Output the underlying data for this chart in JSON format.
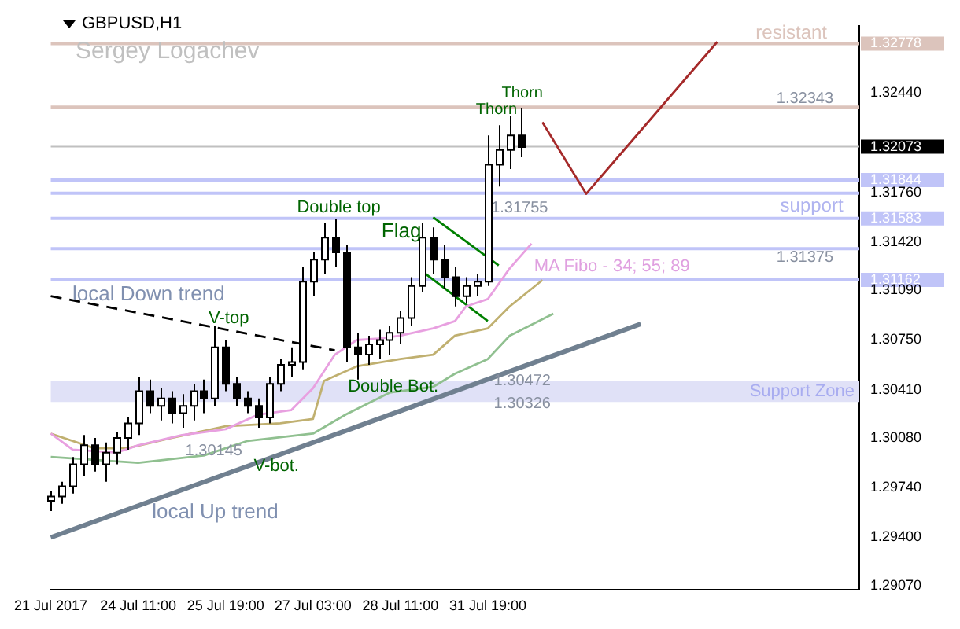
{
  "chart_data": {
    "type": "candlestick",
    "title": "GBPUSD,H1",
    "subtitle": "Sergey Logachev",
    "categories": [
      "21 Jul 2017",
      null,
      null,
      null,
      null,
      null,
      null,
      null,
      "24 Jul 11:00",
      null,
      null,
      null,
      null,
      null,
      null,
      null,
      "25 Jul 19:00",
      null,
      null,
      null,
      null,
      null,
      null,
      null,
      "27 Jul 03:00",
      null,
      null,
      null,
      null,
      null,
      null,
      null,
      "28 Jul 11:00",
      null,
      null,
      null,
      null,
      null,
      null,
      null,
      "31 Jul 19:00",
      null,
      null,
      null,
      null,
      null,
      null,
      null,
      null,
      null,
      null,
      null,
      null,
      null,
      null,
      null,
      null,
      null,
      null,
      null,
      null,
      null,
      null,
      null,
      null,
      null,
      null,
      null,
      null,
      null,
      null,
      null,
      null,
      null,
      null
    ],
    "ohlc": [
      [
        1.2965,
        1.2972,
        1.2958,
        1.2968
      ],
      [
        1.2968,
        1.2978,
        1.2963,
        1.2975
      ],
      [
        1.2975,
        1.2995,
        1.297,
        1.299
      ],
      [
        1.299,
        1.301,
        1.2982,
        1.3003
      ],
      [
        1.3003,
        1.3008,
        1.2985,
        1.299
      ],
      [
        1.299,
        1.3005,
        1.2978,
        1.2998
      ],
      [
        1.2998,
        1.3012,
        1.299,
        1.3008
      ],
      [
        1.3008,
        1.3022,
        1.3,
        1.3018
      ],
      [
        1.3018,
        1.305,
        1.301,
        1.304
      ],
      [
        1.304,
        1.3048,
        1.3025,
        1.303
      ],
      [
        1.303,
        1.3042,
        1.302,
        1.3035
      ],
      [
        1.3035,
        1.304,
        1.3018,
        1.3025
      ],
      [
        1.3025,
        1.3038,
        1.3015,
        1.303
      ],
      [
        1.303,
        1.3045,
        1.302,
        1.304
      ],
      [
        1.304,
        1.3048,
        1.3025,
        1.3035
      ],
      [
        1.3035,
        1.3085,
        1.303,
        1.307
      ],
      [
        1.307,
        1.3075,
        1.304,
        1.3045
      ],
      [
        1.3045,
        1.305,
        1.303,
        1.3035
      ],
      [
        1.3035,
        1.304,
        1.3025,
        1.303
      ],
      [
        1.303,
        1.3035,
        1.3015,
        1.3022
      ],
      [
        1.3022,
        1.305,
        1.3018,
        1.3045
      ],
      [
        1.3045,
        1.3062,
        1.304,
        1.3058
      ],
      [
        1.3058,
        1.307,
        1.305,
        1.306
      ],
      [
        1.306,
        1.3125,
        1.3055,
        1.3115
      ],
      [
        1.3115,
        1.3135,
        1.3105,
        1.313
      ],
      [
        1.313,
        1.3155,
        1.312,
        1.3145
      ],
      [
        1.3145,
        1.3158,
        1.3125,
        1.3135
      ],
      [
        1.3135,
        1.314,
        1.306,
        1.307
      ],
      [
        1.307,
        1.308,
        1.3048,
        1.3065
      ],
      [
        1.3065,
        1.3078,
        1.3058,
        1.3072
      ],
      [
        1.3072,
        1.3082,
        1.3062,
        1.3075
      ],
      [
        1.3075,
        1.3085,
        1.3065,
        1.308
      ],
      [
        1.308,
        1.3095,
        1.3072,
        1.309
      ],
      [
        1.309,
        1.3118,
        1.3085,
        1.3112
      ],
      [
        1.3112,
        1.3155,
        1.3108,
        1.3145
      ],
      [
        1.3145,
        1.3152,
        1.312,
        1.313
      ],
      [
        1.313,
        1.314,
        1.311,
        1.3118
      ],
      [
        1.3118,
        1.3125,
        1.3098,
        1.3105
      ],
      [
        1.3105,
        1.3118,
        1.31,
        1.3112
      ],
      [
        1.3112,
        1.312,
        1.3105,
        1.3115
      ],
      [
        1.3115,
        1.3215,
        1.3112,
        1.3195
      ],
      [
        1.3195,
        1.3222,
        1.318,
        1.3205
      ],
      [
        1.3205,
        1.3228,
        1.3192,
        1.3215
      ],
      [
        1.3215,
        1.3234,
        1.32,
        1.3207
      ],
      null,
      null,
      null,
      null,
      null,
      null,
      null,
      null,
      null,
      null,
      null,
      null,
      null,
      null,
      null,
      null,
      null,
      null,
      null,
      null,
      null,
      null,
      null,
      null,
      null,
      null,
      null,
      null,
      null,
      null,
      null
    ],
    "series": [
      {
        "type": "line",
        "color": "#e8a0e0",
        "values": [
          1.3011,
          null,
          1.3,
          null,
          null,
          null,
          1.2998,
          null,
          1.3003,
          null,
          null,
          null,
          1.301,
          null,
          null,
          null,
          1.3014,
          null,
          null,
          1.3024,
          null,
          null,
          1.3027,
          null,
          1.3042,
          null,
          1.3065,
          null,
          1.3075,
          null,
          1.3076,
          null,
          1.3078,
          null,
          null,
          1.3083,
          null,
          1.3088,
          1.3098,
          null,
          1.3103,
          null,
          1.3124,
          null,
          1.3141,
          null,
          null,
          null,
          null,
          null,
          null,
          null,
          null,
          null,
          null,
          null,
          null,
          null,
          null,
          null,
          null,
          null,
          null,
          null,
          null,
          null,
          null,
          null,
          null,
          null,
          null,
          null,
          null,
          null,
          null
        ]
      },
      {
        "type": "line",
        "color": "#c0b070",
        "values": [
          1.3011,
          null,
          null,
          null,
          1.3001,
          null,
          null,
          1.3001,
          null,
          null,
          null,
          1.3008,
          null,
          null,
          null,
          null,
          1.3016,
          null,
          null,
          null,
          null,
          1.3018,
          null,
          null,
          1.3021,
          1.3047,
          null,
          null,
          1.3057,
          null,
          null,
          null,
          1.3062,
          null,
          null,
          1.3065,
          null,
          1.3078,
          null,
          null,
          1.3083,
          null,
          1.3098,
          null,
          null,
          1.3116,
          null,
          null,
          null,
          null,
          null,
          null,
          null,
          null,
          null,
          null,
          null,
          null,
          null,
          null,
          null,
          null,
          null,
          null,
          null,
          null,
          null,
          null,
          null,
          null,
          null,
          null,
          null,
          null,
          null
        ]
      },
      {
        "type": "line",
        "color": "#90c090",
        "values": [
          1.2995,
          null,
          null,
          null,
          1.2993,
          null,
          null,
          null,
          1.2991,
          null,
          null,
          null,
          null,
          null,
          1.2996,
          null,
          null,
          null,
          1.3006,
          null,
          null,
          null,
          null,
          null,
          1.3011,
          null,
          null,
          1.3024,
          null,
          null,
          null,
          1.3039,
          null,
          null,
          null,
          1.3043,
          null,
          1.3052,
          null,
          null,
          1.3062,
          null,
          1.3078,
          null,
          null,
          null,
          1.3093,
          null,
          null,
          null,
          null,
          null,
          null,
          null,
          null,
          null,
          null,
          null,
          null,
          null,
          null,
          null,
          null,
          null,
          null,
          null,
          null,
          null,
          null,
          null,
          null,
          null,
          null,
          null,
          null
        ]
      },
      {
        "type": "line",
        "color": "#000000",
        "line_style": "dashed",
        "values": [
          1.3105,
          null,
          null,
          null,
          null,
          null,
          null,
          null,
          null,
          null,
          null,
          null,
          null,
          null,
          null,
          null,
          null,
          null,
          null,
          null,
          null,
          null,
          null,
          null,
          null,
          null,
          1.3068,
          null,
          null,
          null,
          null,
          null,
          null,
          null,
          null,
          null,
          null,
          null,
          null,
          null,
          null,
          null,
          null,
          null,
          null,
          null,
          null,
          null,
          null,
          null,
          null,
          null,
          null,
          null,
          null,
          null,
          null,
          null,
          null,
          null,
          null,
          null,
          null,
          null,
          null,
          null,
          null,
          null,
          null,
          null,
          null,
          null,
          null,
          null,
          null
        ]
      },
      {
        "type": "line",
        "color": "#708090",
        "values": [
          1.294,
          null,
          null,
          null,
          null,
          null,
          null,
          null,
          null,
          null,
          null,
          null,
          null,
          null,
          null,
          null,
          null,
          null,
          null,
          null,
          null,
          null,
          null,
          null,
          null,
          null,
          null,
          null,
          null,
          null,
          null,
          null,
          null,
          null,
          null,
          null,
          null,
          null,
          null,
          null,
          null,
          null,
          null,
          null,
          null,
          null,
          null,
          null,
          null,
          null,
          null,
          null,
          null,
          null,
          1.3086,
          null,
          null,
          null,
          null,
          null,
          null,
          null,
          null,
          null,
          null,
          null,
          null,
          null,
          null,
          null,
          null,
          null,
          null,
          null,
          null
        ]
      },
      {
        "type": "line",
        "color": "#008000",
        "values": [
          null,
          null,
          null,
          null,
          null,
          null,
          null,
          null,
          null,
          null,
          null,
          null,
          null,
          null,
          null,
          null,
          null,
          null,
          null,
          null,
          null,
          null,
          null,
          null,
          null,
          null,
          null,
          null,
          null,
          null,
          null,
          null,
          null,
          null,
          null,
          1.3159,
          null,
          null,
          null,
          null,
          null,
          1.3126,
          null,
          null,
          null,
          null,
          null,
          null,
          null,
          null,
          null,
          null,
          null,
          null,
          null,
          null,
          null,
          null,
          null,
          null,
          null,
          null,
          null,
          null,
          null,
          null,
          null,
          null,
          null,
          null,
          null,
          null,
          null,
          null,
          null
        ]
      },
      {
        "type": "line",
        "color": "#008000",
        "values": [
          null,
          null,
          null,
          null,
          null,
          null,
          null,
          null,
          null,
          null,
          null,
          null,
          null,
          null,
          null,
          null,
          null,
          null,
          null,
          null,
          null,
          null,
          null,
          null,
          null,
          null,
          null,
          null,
          null,
          null,
          null,
          null,
          null,
          null,
          1.3122,
          null,
          null,
          null,
          null,
          null,
          1.3088,
          null,
          null,
          null,
          null,
          null,
          null,
          null,
          null,
          null,
          null,
          null,
          null,
          null,
          null,
          null,
          null,
          null,
          null,
          null,
          null,
          null,
          null,
          null,
          null,
          null,
          null,
          null,
          null,
          null,
          null,
          null,
          null,
          null,
          null
        ]
      },
      {
        "type": "line",
        "color": "#a52a2a",
        "values": [
          null,
          null,
          null,
          null,
          null,
          null,
          null,
          null,
          null,
          null,
          null,
          null,
          null,
          null,
          null,
          null,
          null,
          null,
          null,
          null,
          null,
          null,
          null,
          null,
          null,
          null,
          null,
          null,
          null,
          null,
          null,
          null,
          null,
          null,
          null,
          null,
          null,
          null,
          null,
          null,
          null,
          null,
          null,
          null,
          null,
          1.3224,
          null,
          null,
          null,
          1.3175,
          null,
          null,
          null,
          null,
          null,
          null,
          null,
          null,
          null,
          null,
          null,
          1.3279,
          null,
          null,
          null,
          null,
          null,
          null,
          null,
          null,
          null,
          null,
          null,
          null,
          null
        ]
      }
    ],
    "ylim": [
      1.2904,
      1.329
    ],
    "yticks": [
      1.32778,
      {
        "value": 1.3244,
        "label": "1.32440"
      },
      1.32073,
      1.31844,
      {
        "value": 1.3176,
        "label": "1.31760"
      },
      1.31583,
      {
        "value": 1.3142,
        "label": "1.31420"
      },
      1.31162,
      {
        "value": 1.3109,
        "label": "1.31090"
      },
      {
        "value": 1.3075,
        "label": "1.30750"
      },
      {
        "value": 1.3041,
        "label": "1.30410"
      },
      {
        "value": 1.3008,
        "label": "1.30080"
      },
      {
        "value": 1.2974,
        "label": "1.29740"
      },
      {
        "value": 1.294,
        "label": "1.29400"
      },
      {
        "value": 1.2907,
        "label": "1.29070"
      }
    ],
    "ref_lines": [
      {
        "axis": "y",
        "value": 1.32778,
        "color": "#dcc4bc"
      },
      {
        "axis": "y",
        "value": 1.32343,
        "color": "#dcc4bc"
      },
      {
        "axis": "y",
        "value": 1.32073,
        "color": "#c0c0c0"
      },
      {
        "axis": "y",
        "value": 1.31844,
        "color": "#c0c4f8"
      },
      {
        "axis": "y",
        "value": 1.31755,
        "color": "#c0c4f8"
      },
      {
        "axis": "y",
        "value": 1.31583,
        "color": "#c0c4f8"
      },
      {
        "axis": "y",
        "value": 1.31375,
        "color": "#c0c4f8"
      },
      {
        "axis": "y",
        "value": 1.31162,
        "color": "#c0c4f8"
      }
    ],
    "bands": [
      {
        "axis": "y",
        "from": 1.30326,
        "to": 1.30472,
        "label": "Support Zone",
        "color": "#e0e1f7"
      }
    ],
    "annotations": [
      "resistant",
      "1.32343",
      "Thorn",
      "Thorn",
      "1.31755",
      "support",
      "Double top",
      "Flag",
      "1.31375",
      "MA Fibo - 34; 55; 89",
      "local Down trend",
      "V-top",
      "Double Bot.",
      "1.30472",
      "1.30326",
      "1.30145",
      "V-bot.",
      "local Up trend"
    ],
    "grid": false,
    "legend": false
  }
}
